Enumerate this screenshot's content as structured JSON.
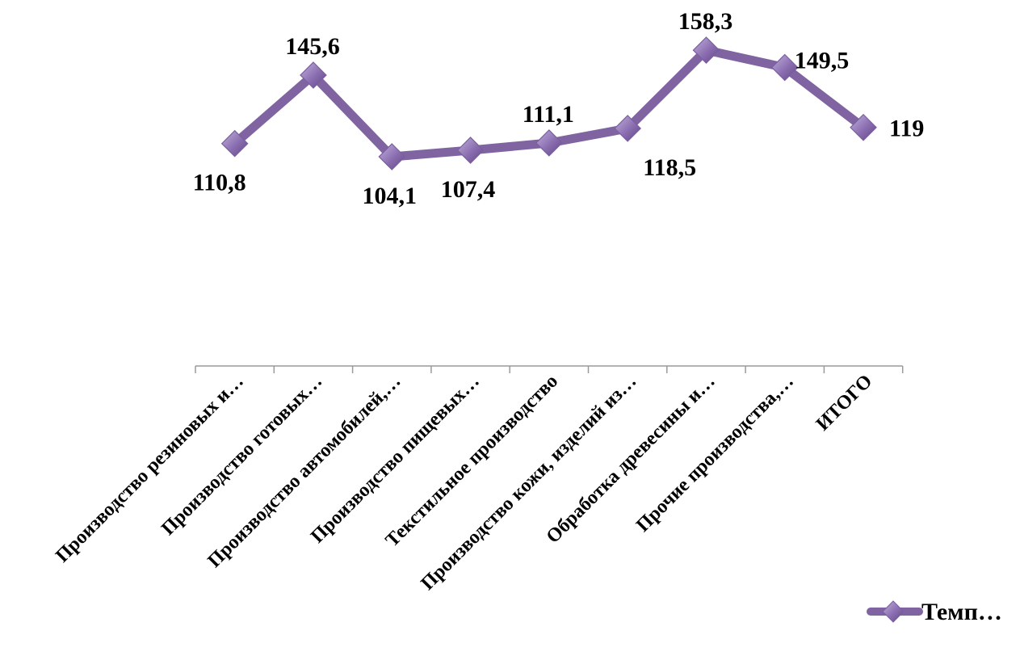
{
  "chart_data": {
    "type": "line",
    "categories": [
      "Производство резиновых и…",
      "Производство готовых…",
      "Производство автомобилей,…",
      "Производство пищевых…",
      "Текстильное производство",
      "Производство кожи, изделий из…",
      "Обработка древесины и…",
      "Прочие производства,…",
      "ИТОГО"
    ],
    "series": [
      {
        "name": "Темп…",
        "values": [
          110.8,
          145.6,
          104.1,
          107.4,
          111.1,
          118.5,
          158.3,
          149.5,
          119
        ],
        "labels": [
          "110,8",
          "145,6",
          "104,1",
          "107,4",
          "111,1",
          "118,5",
          "158,3",
          "149,5",
          "119"
        ],
        "color": "#8064a2"
      }
    ],
    "legend": {
      "position": "bottom-right",
      "label": "Темп…"
    },
    "grid": false,
    "ylim": [
      90,
      165
    ]
  }
}
